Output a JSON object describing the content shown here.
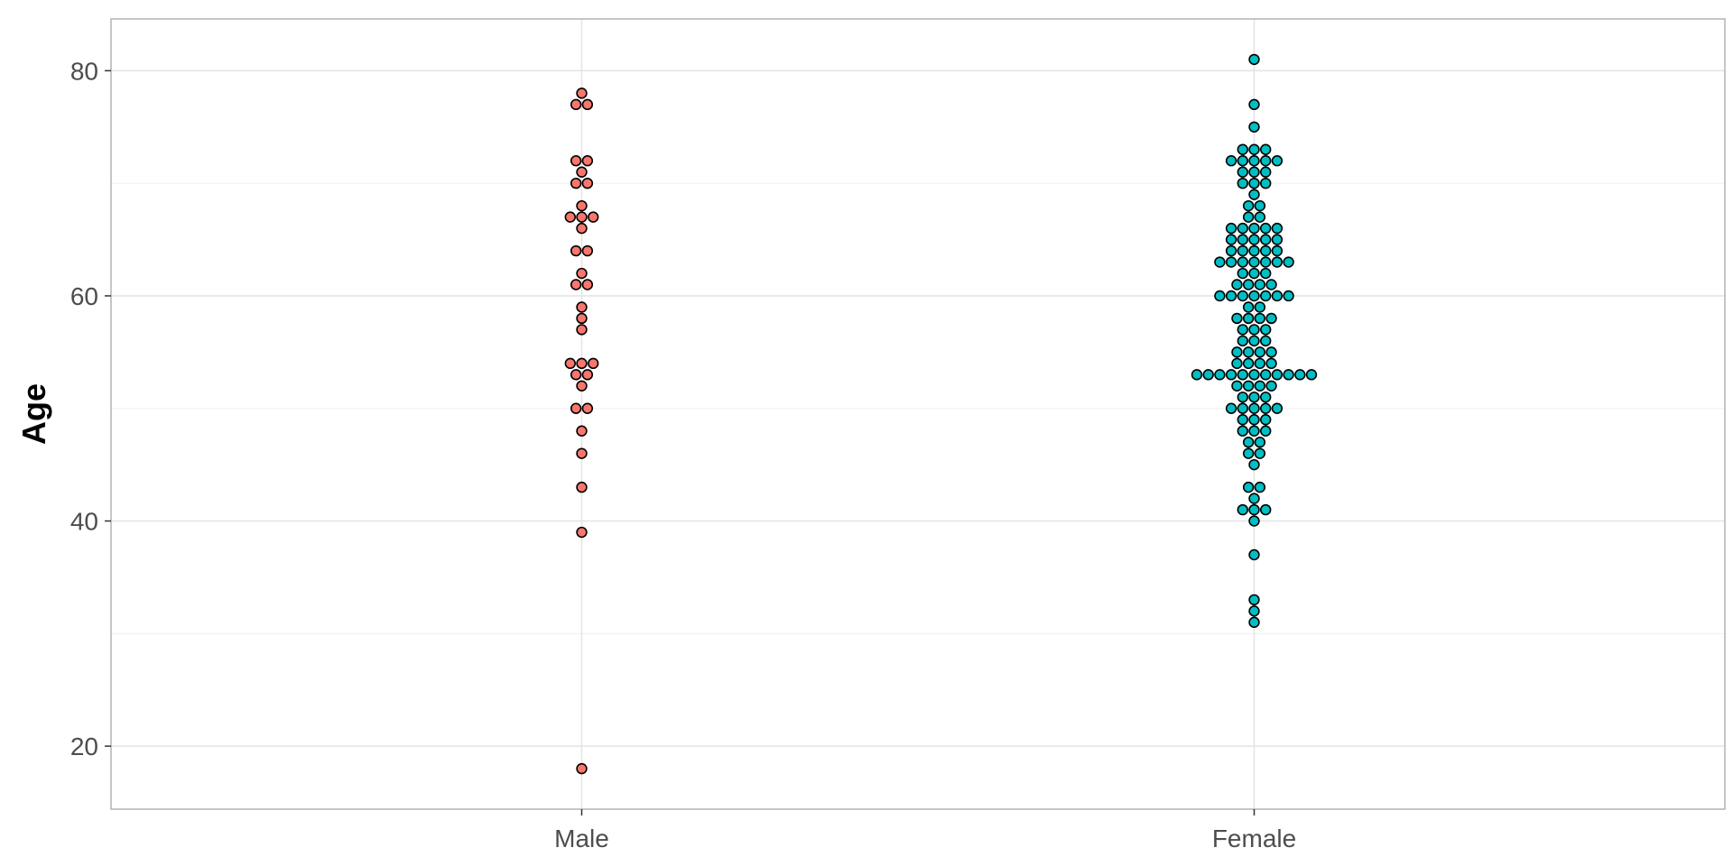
{
  "chart_data": {
    "type": "scatter",
    "subtype": "beeswarm",
    "title": "",
    "xlabel": "",
    "ylabel": "Age",
    "categories": [
      "Male",
      "Female"
    ],
    "ylim": [
      14.4,
      84.6
    ],
    "y_ticks": [
      20,
      40,
      60,
      80
    ],
    "grid": true,
    "legend": "none",
    "series": [
      {
        "category": "Male",
        "color": "#F8766D",
        "values": [
          18,
          39,
          43,
          46,
          48,
          50,
          50,
          52,
          53,
          53,
          54,
          54,
          54,
          57,
          58,
          59,
          61,
          61,
          62,
          64,
          64,
          66,
          67,
          67,
          67,
          68,
          70,
          70,
          71,
          72,
          72,
          77,
          77,
          78
        ]
      },
      {
        "category": "Female",
        "color": "#00BFC4",
        "values": [
          31,
          32,
          33,
          37,
          40,
          41,
          41,
          41,
          42,
          43,
          43,
          45,
          46,
          46,
          47,
          47,
          48,
          48,
          48,
          49,
          49,
          49,
          50,
          50,
          50,
          50,
          50,
          51,
          51,
          51,
          52,
          52,
          52,
          52,
          53,
          53,
          53,
          53,
          53,
          53,
          53,
          53,
          53,
          53,
          53,
          54,
          54,
          54,
          54,
          55,
          55,
          55,
          55,
          56,
          56,
          56,
          57,
          57,
          57,
          58,
          58,
          58,
          58,
          59,
          59,
          60,
          60,
          60,
          60,
          60,
          60,
          60,
          61,
          61,
          61,
          61,
          62,
          62,
          62,
          63,
          63,
          63,
          63,
          63,
          63,
          63,
          64,
          64,
          64,
          64,
          64,
          65,
          65,
          65,
          65,
          65,
          66,
          66,
          66,
          66,
          66,
          67,
          67,
          68,
          68,
          69,
          70,
          70,
          70,
          71,
          71,
          71,
          72,
          72,
          72,
          72,
          72,
          73,
          73,
          73,
          75,
          77,
          81
        ]
      }
    ]
  }
}
